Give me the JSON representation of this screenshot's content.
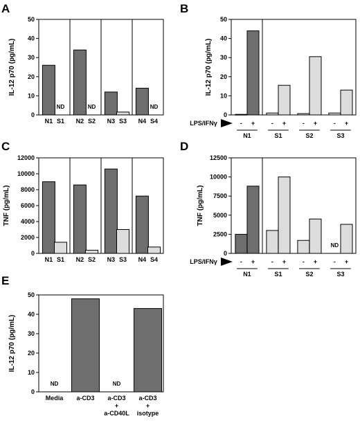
{
  "colors": {
    "dark": "#6e6e6e",
    "light": "#dcdcdc",
    "axis": "#000000"
  },
  "chart_data": [
    {
      "panel": "A",
      "type": "bar",
      "ylabel": "IL-12 p70 (pg/mL)",
      "ylim": [
        0,
        50
      ],
      "yticks": [
        "0",
        "10",
        "20",
        "30",
        "40",
        "50"
      ],
      "categories": [
        "N1",
        "S1",
        "N2",
        "S2",
        "N3",
        "S3",
        "N4",
        "S4"
      ],
      "values": [
        26,
        null,
        34,
        null,
        12,
        1.5,
        14,
        null
      ],
      "shade": [
        "dark",
        "light",
        "dark",
        "light",
        "dark",
        "light",
        "dark",
        "light"
      ],
      "nd_label": "ND",
      "groups": 4,
      "per_group": 2
    },
    {
      "panel": "B",
      "type": "bar",
      "ylabel": "IL-12 p70 (pg/mL)",
      "ylim": [
        0,
        50
      ],
      "yticks": [
        "0",
        "10",
        "20",
        "30",
        "40",
        "50"
      ],
      "condition_label": "LPS/IFNγ",
      "signs": [
        "-",
        "+",
        "-",
        "+",
        "-",
        "+",
        "-",
        "+"
      ],
      "group_labels": [
        "N1",
        "S1",
        "S2",
        "S3"
      ],
      "values": [
        0.3,
        44,
        1,
        15.5,
        0.7,
        30.5,
        1,
        13
      ],
      "shade": [
        "dark",
        "dark",
        "light",
        "light",
        "light",
        "light",
        "light",
        "light"
      ],
      "nd_label": "ND",
      "groups": 4,
      "per_group": 2,
      "divider_after_group": 0
    },
    {
      "panel": "C",
      "type": "bar",
      "ylabel": "TNF (pg/mL)",
      "ylim": [
        0,
        12000
      ],
      "yticks": [
        "0",
        "2000",
        "4000",
        "6000",
        "8000",
        "10000",
        "12000"
      ],
      "categories": [
        "N1",
        "S1",
        "N2",
        "S2",
        "N3",
        "S3",
        "N4",
        "S4"
      ],
      "values": [
        9000,
        1400,
        8600,
        400,
        10600,
        3000,
        7200,
        800
      ],
      "shade": [
        "dark",
        "light",
        "dark",
        "light",
        "dark",
        "light",
        "dark",
        "light"
      ],
      "nd_label": "ND",
      "groups": 4,
      "per_group": 2
    },
    {
      "panel": "D",
      "type": "bar",
      "ylabel": "TNF (pg/mL)",
      "ylim": [
        0,
        12500
      ],
      "yticks": [
        "0",
        "2500",
        "5000",
        "7500",
        "10000",
        "12500"
      ],
      "condition_label": "LPS/IFNγ",
      "signs": [
        "-",
        "+",
        "-",
        "+",
        "-",
        "+",
        "-",
        "+"
      ],
      "group_labels": [
        "N1",
        "S1",
        "S2",
        "S3"
      ],
      "values": [
        2500,
        8800,
        3000,
        10000,
        1700,
        4500,
        null,
        3800
      ],
      "shade": [
        "dark",
        "dark",
        "light",
        "light",
        "light",
        "light",
        "light",
        "light"
      ],
      "nd_label": "ND",
      "groups": 4,
      "per_group": 2,
      "divider_after_group": 0
    },
    {
      "panel": "E",
      "type": "bar",
      "ylabel": "IL-12 p70 (pg/mL)",
      "ylim": [
        0,
        50
      ],
      "yticks": [
        "0",
        "10",
        "20",
        "30",
        "40",
        "50"
      ],
      "categories": [
        [
          "Media"
        ],
        [
          "a-CD3"
        ],
        [
          "a-CD3",
          "+",
          "a-CD40L"
        ],
        [
          "a-CD3",
          "+",
          "isotype"
        ]
      ],
      "values": [
        null,
        48,
        null,
        43
      ],
      "shade": [
        "dark",
        "dark",
        "dark",
        "dark"
      ],
      "nd_label": "ND"
    }
  ]
}
